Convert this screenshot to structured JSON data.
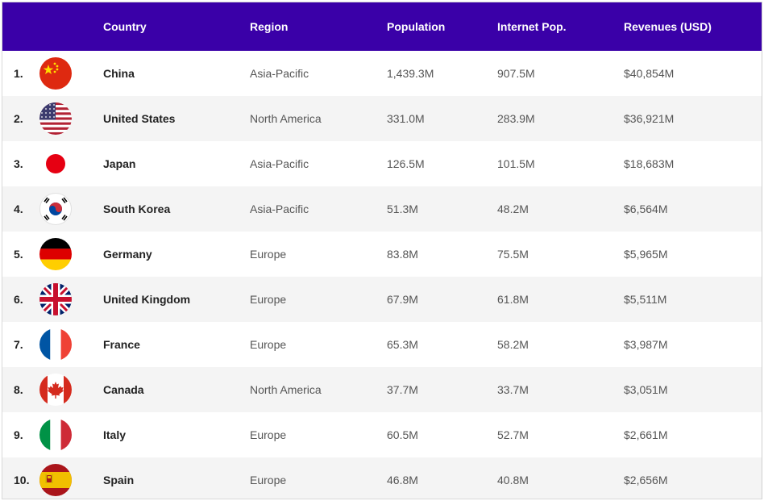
{
  "header": {
    "country": "Country",
    "region": "Region",
    "population": "Population",
    "internet": "Internet Pop.",
    "revenues": "Revenues (USD)"
  },
  "rows": [
    {
      "rank": "1.",
      "flag": "china-flag-icon",
      "country": "China",
      "region": "Asia-Pacific",
      "population": "1,439.3M",
      "internet": "907.5M",
      "revenues": "$40,854M"
    },
    {
      "rank": "2.",
      "flag": "united-states-flag-icon",
      "country": "United States",
      "region": "North America",
      "population": "331.0M",
      "internet": "283.9M",
      "revenues": "$36,921M"
    },
    {
      "rank": "3.",
      "flag": "japan-flag-icon",
      "country": "Japan",
      "region": "Asia-Pacific",
      "population": "126.5M",
      "internet": "101.5M",
      "revenues": "$18,683M"
    },
    {
      "rank": "4.",
      "flag": "south-korea-flag-icon",
      "country": "South Korea",
      "region": "Asia-Pacific",
      "population": "51.3M",
      "internet": "48.2M",
      "revenues": "$6,564M"
    },
    {
      "rank": "5.",
      "flag": "germany-flag-icon",
      "country": "Germany",
      "region": "Europe",
      "population": "83.8M",
      "internet": "75.5M",
      "revenues": "$5,965M"
    },
    {
      "rank": "6.",
      "flag": "united-kingdom-flag-icon",
      "country": "United Kingdom",
      "region": "Europe",
      "population": "67.9M",
      "internet": "61.8M",
      "revenues": "$5,511M"
    },
    {
      "rank": "7.",
      "flag": "france-flag-icon",
      "country": "France",
      "region": "Europe",
      "population": "65.3M",
      "internet": "58.2M",
      "revenues": "$3,987M"
    },
    {
      "rank": "8.",
      "flag": "canada-flag-icon",
      "country": "Canada",
      "region": "North America",
      "population": "37.7M",
      "internet": "33.7M",
      "revenues": "$3,051M"
    },
    {
      "rank": "9.",
      "flag": "italy-flag-icon",
      "country": "Italy",
      "region": "Europe",
      "population": "60.5M",
      "internet": "52.7M",
      "revenues": "$2,661M"
    },
    {
      "rank": "10.",
      "flag": "spain-flag-icon",
      "country": "Spain",
      "region": "Europe",
      "population": "46.8M",
      "internet": "40.8M",
      "revenues": "$2,656M"
    }
  ],
  "colors": {
    "header_bg": "#3a00a8",
    "header_text": "#ffffff",
    "row_alt": "#f4f4f4"
  }
}
